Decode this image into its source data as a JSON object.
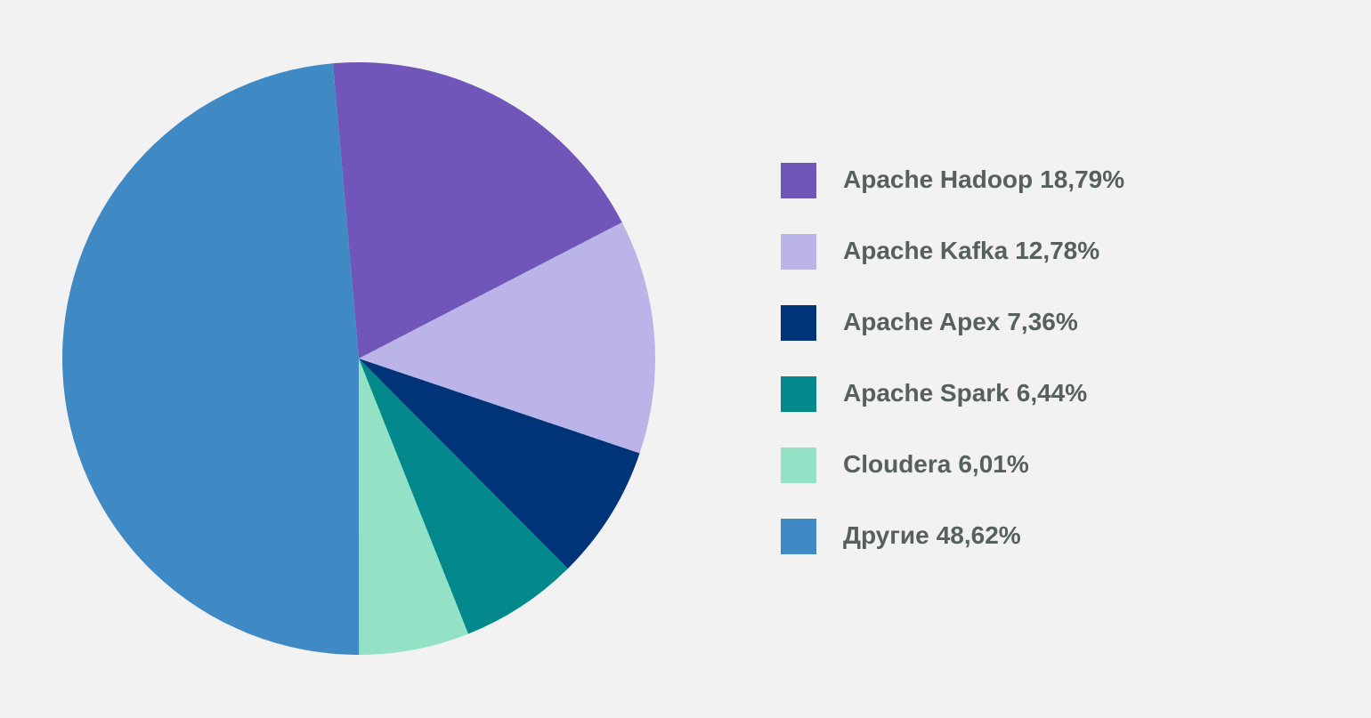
{
  "chart_data": {
    "type": "pie",
    "categories": [
      "Apache Hadoop",
      "Apache Kafka",
      "Apache Apex",
      "Apache Spark",
      "Cloudera",
      "Другие"
    ],
    "values": [
      18.79,
      12.78,
      7.36,
      6.44,
      6.01,
      48.62
    ],
    "value_labels": [
      "18,79%",
      "12,78%",
      "7,36%",
      "6,44%",
      "6,01%",
      "48,62%"
    ],
    "colors": [
      "#7056b9",
      "#bbb4e9",
      "#003479",
      "#03888c",
      "#93e2c6",
      "#3f89c5"
    ]
  }
}
